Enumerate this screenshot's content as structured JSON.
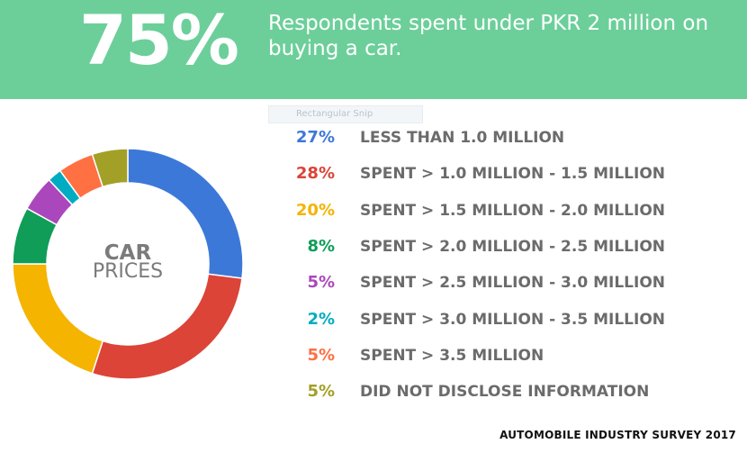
{
  "header": {
    "big_percent": "75%",
    "headline": "Respondents spent under PKR 2 million on buying a car."
  },
  "overlay": {
    "snip_label": "Rectangular Snip"
  },
  "center": {
    "title": "CAR",
    "subtitle": "PRICES"
  },
  "footer": {
    "text": "AUTOMOBILE INDUSTRY SURVEY 2017"
  },
  "chart_data": {
    "type": "pie",
    "title": "",
    "slices": [
      {
        "label": "LESS THAN 1.0 MILLION",
        "value": 27,
        "percent_label": "27%",
        "color": "#3c78d8"
      },
      {
        "label": "SPENT > 1.0 MILLION - 1.5 MILLION",
        "value": 28,
        "percent_label": "28%",
        "color": "#db4437"
      },
      {
        "label": "SPENT > 1.5 MILLION - 2.0 MILLION",
        "value": 20,
        "percent_label": "20%",
        "color": "#f4b400"
      },
      {
        "label": "SPENT > 2.0 MILLION - 2.5 MILLION",
        "value": 8,
        "percent_label": "8%",
        "color": "#0f9d58"
      },
      {
        "label": "SPENT > 2.5 MILLION - 3.0 MILLION",
        "value": 5,
        "percent_label": "5%",
        "color": "#ab47bc"
      },
      {
        "label": "SPENT > 3.0 MILLION - 3.5 MILLION",
        "value": 2,
        "percent_label": "2%",
        "color": "#00acc1"
      },
      {
        "label": "SPENT > 3.5 MILLION",
        "value": 5,
        "percent_label": "5%",
        "color": "#ff7043"
      },
      {
        "label": "DID NOT DISCLOSE INFORMATION",
        "value": 5,
        "percent_label": "5%",
        "color": "#a3a028"
      }
    ],
    "legend_placement": "right"
  }
}
